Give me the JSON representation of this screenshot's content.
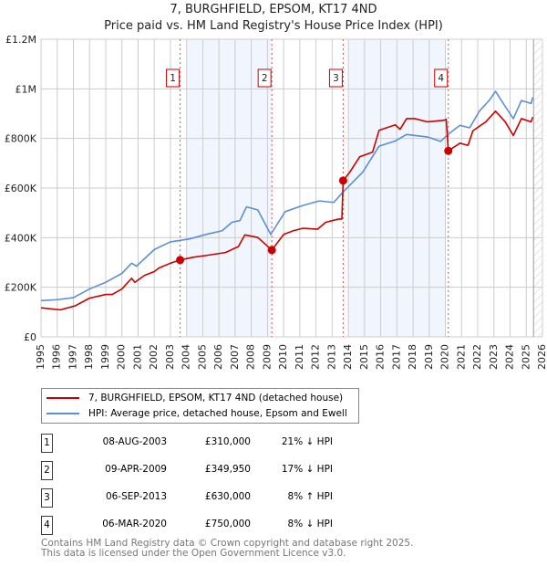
{
  "title": "7, BURGHFIELD, EPSOM, KT17 4ND",
  "subtitle": "Price paid vs. HM Land Registry's House Price Index (HPI)",
  "chart_data": {
    "type": "line",
    "xlim": [
      1995,
      2026
    ],
    "ylim": [
      0,
      1200000
    ],
    "x_ticks": [
      1995,
      1996,
      1997,
      1998,
      1999,
      2000,
      2001,
      2002,
      2003,
      2004,
      2005,
      2006,
      2007,
      2008,
      2009,
      2010,
      2011,
      2012,
      2013,
      2014,
      2015,
      2016,
      2017,
      2018,
      2019,
      2020,
      2021,
      2022,
      2023,
      2024,
      2025,
      2026
    ],
    "y_ticks": [
      {
        "v": 0,
        "label": "£0"
      },
      {
        "v": 200000,
        "label": "£200K"
      },
      {
        "v": 400000,
        "label": "£400K"
      },
      {
        "v": 600000,
        "label": "£600K"
      },
      {
        "v": 800000,
        "label": "£800K"
      },
      {
        "v": 1000000,
        "label": "£1M"
      },
      {
        "v": 1200000,
        "label": "£1.2M"
      }
    ],
    "grid": true,
    "shaded_ranges": [
      [
        2004.0,
        2009.27
      ],
      [
        2014.0,
        2020.0
      ]
    ],
    "hatched_from": 2025.45,
    "series": [
      {
        "name": "7, BURGHFIELD, EPSOM, KT17 4ND (detached house)",
        "color": "#cc0000",
        "points": [
          [
            1995,
            117
          ],
          [
            1996.2,
            109
          ],
          [
            1997.1,
            125
          ],
          [
            1998,
            156
          ],
          [
            1999,
            171
          ],
          [
            1999.4,
            171
          ],
          [
            2000,
            193
          ],
          [
            2000.6,
            236
          ],
          [
            2000.8,
            220
          ],
          [
            2001.4,
            248
          ],
          [
            2002,
            263
          ],
          [
            2002.3,
            278
          ],
          [
            2003,
            297
          ],
          [
            2003.6,
            310
          ],
          [
            2004.4,
            321
          ],
          [
            2005.2,
            328
          ],
          [
            2006.4,
            340
          ],
          [
            2007.2,
            364
          ],
          [
            2007.6,
            411
          ],
          [
            2008.4,
            401
          ],
          [
            2009.27,
            350
          ],
          [
            2010,
            413
          ],
          [
            2010.6,
            428
          ],
          [
            2011.2,
            438
          ],
          [
            2012.1,
            434
          ],
          [
            2012.6,
            462
          ],
          [
            2013.4,
            475
          ],
          [
            2013.6,
            475
          ],
          [
            2013.68,
            630
          ],
          [
            2014.1,
            665
          ],
          [
            2014.7,
            726
          ],
          [
            2015.5,
            745
          ],
          [
            2015.9,
            833
          ],
          [
            2016.9,
            855
          ],
          [
            2017.2,
            837
          ],
          [
            2017.6,
            880
          ],
          [
            2018.1,
            880
          ],
          [
            2018.9,
            867
          ],
          [
            2019.9,
            873
          ],
          [
            2020.05,
            877
          ],
          [
            2020.18,
            750
          ],
          [
            2020.9,
            781
          ],
          [
            2021.4,
            772
          ],
          [
            2021.7,
            831
          ],
          [
            2022.5,
            867
          ],
          [
            2023.1,
            910
          ],
          [
            2023.7,
            867
          ],
          [
            2024.2,
            812
          ],
          [
            2024.7,
            880
          ],
          [
            2025.3,
            867
          ],
          [
            2025.4,
            886
          ]
        ]
      },
      {
        "name": "HPI: Average price, detached house, Epsom and Ewell",
        "color": "#5b8fd0",
        "points": [
          [
            1995,
            146
          ],
          [
            1996,
            150
          ],
          [
            1997,
            158
          ],
          [
            1998,
            193
          ],
          [
            1999,
            220
          ],
          [
            2000,
            256
          ],
          [
            2000.6,
            297
          ],
          [
            2000.9,
            285
          ],
          [
            2002,
            352
          ],
          [
            2003,
            383
          ],
          [
            2003.6,
            389
          ],
          [
            2004.2,
            395
          ],
          [
            2005.2,
            413
          ],
          [
            2006.2,
            428
          ],
          [
            2006.8,
            462
          ],
          [
            2007.3,
            469
          ],
          [
            2007.7,
            524
          ],
          [
            2008.4,
            512
          ],
          [
            2009.2,
            413
          ],
          [
            2010.1,
            505
          ],
          [
            2011.2,
            530
          ],
          [
            2012.2,
            548
          ],
          [
            2013.1,
            542
          ],
          [
            2013.6,
            579
          ],
          [
            2014.9,
            665
          ],
          [
            2015.9,
            769
          ],
          [
            2016.9,
            790
          ],
          [
            2017.6,
            816
          ],
          [
            2018.9,
            806
          ],
          [
            2019.7,
            788
          ],
          [
            2020.2,
            818
          ],
          [
            2020.9,
            853
          ],
          [
            2021.5,
            843
          ],
          [
            2022.1,
            910
          ],
          [
            2022.7,
            953
          ],
          [
            2023.1,
            990
          ],
          [
            2023.7,
            929
          ],
          [
            2024.2,
            880
          ],
          [
            2024.7,
            953
          ],
          [
            2025.3,
            941
          ],
          [
            2025.4,
            966
          ]
        ]
      }
    ],
    "sales": [
      {
        "n": "1",
        "x": 2003.6,
        "price": 310000
      },
      {
        "n": "2",
        "x": 2009.27,
        "price": 349950
      },
      {
        "n": "3",
        "x": 2013.68,
        "price": 630000
      },
      {
        "n": "4",
        "x": 2020.18,
        "price": 750000
      }
    ]
  },
  "legend": {
    "property": "7, BURGHFIELD, EPSOM, KT17 4ND (detached house)",
    "hpi": "HPI: Average price, detached house, Epsom and Ewell"
  },
  "transactions": [
    {
      "n": "1",
      "date": "08-AUG-2003",
      "price": "£310,000",
      "hpi": "21% ↓ HPI"
    },
    {
      "n": "2",
      "date": "09-APR-2009",
      "price": "£349,950",
      "hpi": "17% ↓ HPI"
    },
    {
      "n": "3",
      "date": "06-SEP-2013",
      "price": "£630,000",
      "hpi": "8% ↑ HPI"
    },
    {
      "n": "4",
      "date": "06-MAR-2020",
      "price": "£750,000",
      "hpi": "8% ↓ HPI"
    }
  ],
  "footer": {
    "line1": "Contains HM Land Registry data © Crown copyright and database right 2025.",
    "line2": "This data is licensed under the Open Government Licence v3.0."
  }
}
